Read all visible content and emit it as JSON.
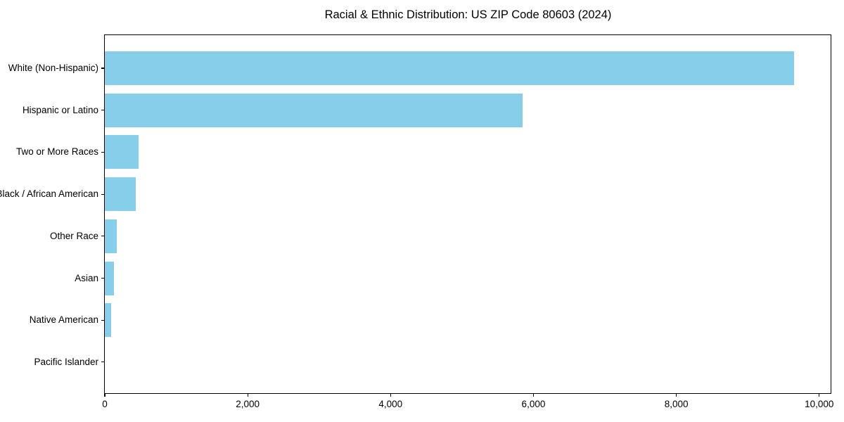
{
  "title": "Racial & Ethnic Distribution: US ZIP Code 80603 (2024)",
  "chart_data": {
    "type": "bar",
    "orientation": "horizontal",
    "title": "Racial & Ethnic Distribution: US ZIP Code 80603 (2024)",
    "xlabel": "",
    "ylabel": "",
    "categories": [
      "White (Non-Hispanic)",
      "Hispanic or Latino",
      "Two or More Races",
      "Black / African American",
      "Other Race",
      "Asian",
      "Native American",
      "Pacific Islander"
    ],
    "values": [
      9650,
      5850,
      470,
      430,
      170,
      130,
      90,
      0
    ],
    "xlim": [
      0,
      10150
    ],
    "x_ticks": [
      0,
      2000,
      4000,
      6000,
      8000,
      10000
    ],
    "x_tick_labels": [
      "0",
      "2,000",
      "4,000",
      "6,000",
      "8,000",
      "10,000"
    ],
    "bar_color": "#87CEEB",
    "spine_color": "#000000",
    "grid": false,
    "legend": null
  }
}
